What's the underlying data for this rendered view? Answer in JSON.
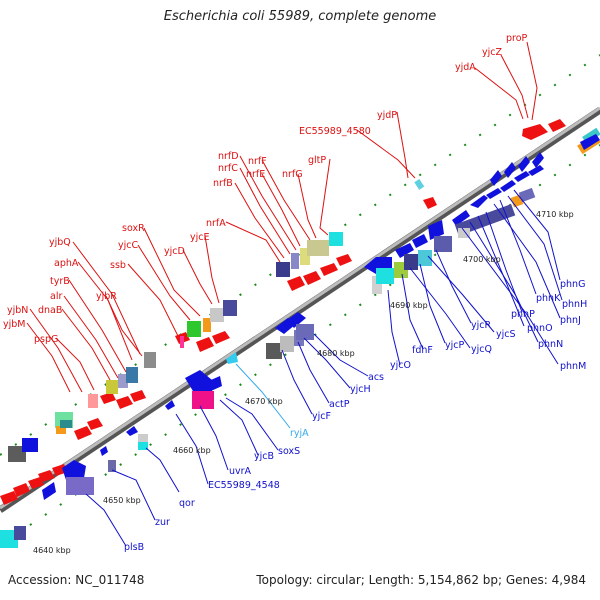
{
  "title": "Escherichia coli 55989, complete genome",
  "footer": {
    "accession": "Accession: NC_011748",
    "summary": "Topology: circular; Length: 5,154,862 bp; Genes: 4,984"
  },
  "colors": {
    "plus_strand_label": "#dd1111",
    "minus_strand_label": "#1111cc",
    "rna_label": "#33aaee",
    "backbone": "#8c8c8c",
    "tick": "#1a8a1a"
  },
  "kbp_markers": [
    "4640 kbp",
    "4650 kbp",
    "4660 kbp",
    "4670 kbp",
    "4680 kbp",
    "4690 kbp",
    "4700 kbp",
    "4710 kbp"
  ],
  "plus_labels": [
    "proP",
    "yjcZ",
    "yjdA",
    "yjdP",
    "EC55989_4580",
    "gltP",
    "nrfG",
    "nrfF",
    "nrfE",
    "nrfD",
    "nrfC",
    "nrfB",
    "nrfA",
    "yjcE",
    "yjcD",
    "soxR",
    "yjcC",
    "ssb",
    "yjbQ",
    "aphA",
    "yjbR",
    "tyrB",
    "alr",
    "dnaB",
    "yjbN",
    "yjbM",
    "pspG"
  ],
  "minus_labels": [
    "phnG",
    "phnH",
    "phnK",
    "phnJ",
    "phnP",
    "phnO",
    "phnN",
    "phnM",
    "yjcR",
    "yjcS",
    "yjcP",
    "yjcQ",
    "fdhF",
    "yjcO",
    "acs",
    "yjcH",
    "actP",
    "yjcF",
    "soxS",
    "yjcB",
    "uvrA",
    "EC55989_4548",
    "qor",
    "zur",
    "plsB"
  ],
  "rna_labels": [
    "ryjA"
  ]
}
